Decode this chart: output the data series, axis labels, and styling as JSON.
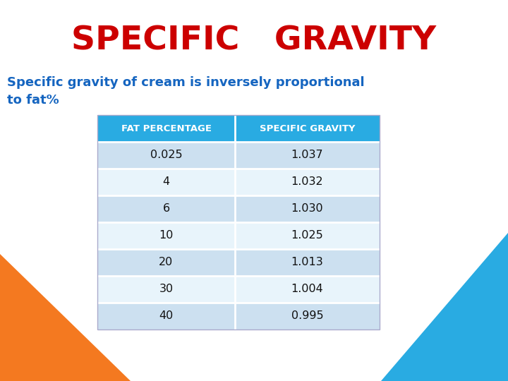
{
  "title": "SPECIFIC   GRAVITY",
  "title_color": "#cc0000",
  "subtitle_line1": "Specific gravity of cream is inversely proportional",
  "subtitle_line2": "to fat%",
  "subtitle_color": "#1565C0",
  "header": [
    "FAT PERCENTAGE",
    "SPECIFIC GRAVITY"
  ],
  "header_bg": "#29ABE2",
  "header_text_color": "#ffffff",
  "rows": [
    [
      "0.025",
      "1.037"
    ],
    [
      "4",
      "1.032"
    ],
    [
      "6",
      "1.030"
    ],
    [
      "10",
      "1.025"
    ],
    [
      "20",
      "1.013"
    ],
    [
      "30",
      "1.004"
    ],
    [
      "40",
      "0.995"
    ]
  ],
  "row_colors": [
    "#cce0f0",
    "#e8f4fb",
    "#cce0f0",
    "#e8f4fb",
    "#cce0f0",
    "#e8f4fb",
    "#cce0f0"
  ],
  "bg_color": "#ffffff",
  "orange_color": "#f47920",
  "blue_color": "#29ABE2",
  "dark_blue_color": "#1a7ab5"
}
